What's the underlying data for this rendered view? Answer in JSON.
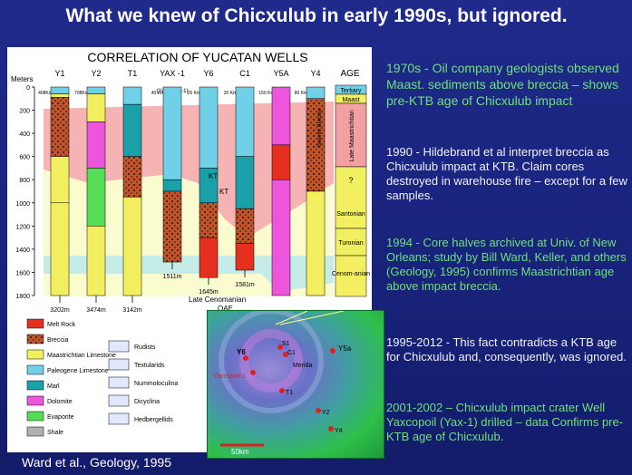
{
  "slide_title": "What we knew of Chicxulub in early 1990s, but ignored.",
  "chart_title": "CORRELATION OF YUCATAN WELLS",
  "axis": {
    "label": "Meters",
    "ticks": [
      "0",
      "200",
      "400",
      "600",
      "800",
      "1000",
      "1200",
      "1400",
      "1600",
      "1800"
    ]
  },
  "wells": [
    {
      "name": "Y1",
      "dist": "408Km",
      "depth": "3202m"
    },
    {
      "name": "Y2",
      "dist": "708Km",
      "depth": "3474m"
    },
    {
      "name": "T1",
      "dist": "",
      "depth": "3142m"
    },
    {
      "name": "YAX -1",
      "sub": "(Yaxcopoil-1)",
      "dist": "40 Km",
      "depth": "1511m"
    },
    {
      "name": "Y6",
      "dist": "25 Km",
      "depth": "1645m"
    },
    {
      "name": "C1",
      "dist": "30 Km",
      "depth": "1581m"
    },
    {
      "name": "Y5A",
      "dist": "150 Km",
      "depth": ""
    },
    {
      "name": "Y4",
      "dist": "80 Km",
      "depth": ""
    }
  ],
  "age_column": {
    "header": "AGE",
    "units": [
      "Tertiary",
      "Maast",
      "Late Maastrichtian",
      "?",
      "Santonian",
      "Turonian",
      "Cenom-anian"
    ]
  },
  "labels": {
    "kt1": "KT",
    "kt2": "KT",
    "q": "?",
    "suevite": "Suevite Breccia",
    "late_cen": "Late Cenomanian",
    "oae": "OAE"
  },
  "legend": {
    "lithology": [
      "Melt Rock",
      "Breccia",
      "Maastrichtian Limestone",
      "Paleogene Limestone",
      "Marl",
      "Dolomite",
      "Evaporite",
      "Shale"
    ],
    "fossils": [
      "Rudists",
      "Textularids",
      "Nummoloculina",
      "Dicyclina",
      "Hedbergellids"
    ]
  },
  "map": {
    "scale": "50km",
    "labels": [
      "Y6",
      "S1",
      "C1",
      "Y5a",
      "Yaxcopoil-1",
      "Merida",
      "T1",
      "Y2",
      "Y4"
    ]
  },
  "paragraphs": [
    "1970s - Oil company geologists observed Maast. sediments above breccia – shows pre-KTB age of Chicxulub impact",
    "1990 - Hildebrand et al interpret breccia as Chicxulub impact at KTB. Claim cores destroyed in warehouse fire – except for a few samples.",
    "1994 - Core halves archived at Univ. of New Orleans; study by Bill Ward, Keller, and others (Geology, 1995) confirms Maastrichtian age above impact breccia.",
    "1995-2012 - This fact contradicts a KTB age for Chicxulub and, consequently, was ignored.",
    "2001-2002 – Chicxulub impact crater Well Yaxcopoil (Yax-1) drilled – data Confirms pre-KTB age of Chicxulub."
  ],
  "credit": "Ward et al., Geology, 1995",
  "colors": {
    "melt": "#e53020",
    "breccia": "#c0542a",
    "maast": "#f2f060",
    "paleo": "#6fd0e8",
    "marl": "#1aa0a8",
    "dolomite": "#ee55dd",
    "evaporite": "#55dd55",
    "shale": "#b0b0b0"
  }
}
